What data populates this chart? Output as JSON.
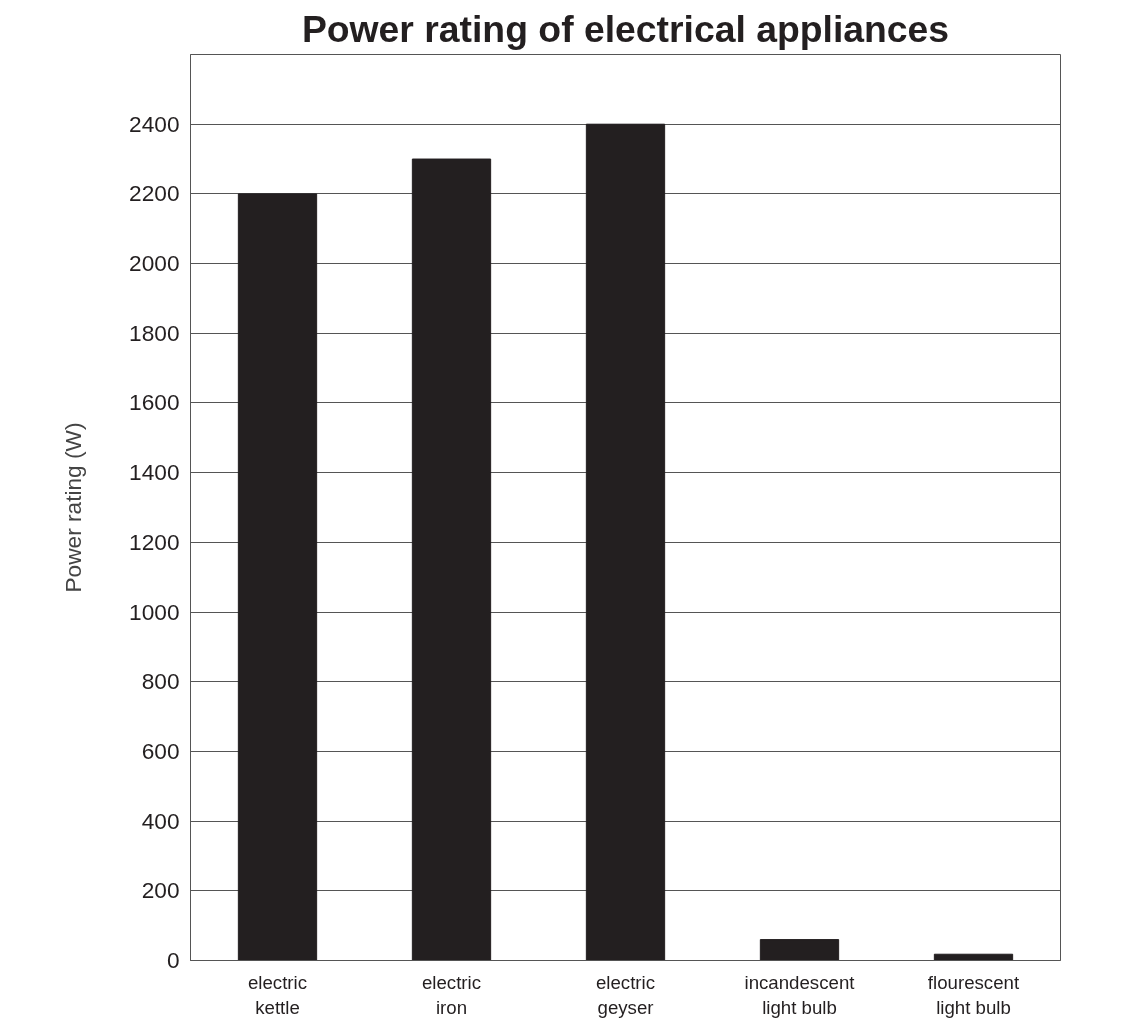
{
  "chart_data": {
    "type": "bar",
    "title": "Power rating of electrical appliances",
    "ylabel": "Power rating (W)",
    "categories": [
      "electric\nkettle",
      "electric\niron",
      "electric\ngeyser",
      "incandescent\nlight bulb",
      "flourescent\nlight bulb"
    ],
    "values": [
      2200,
      2300,
      2400,
      60,
      18
    ],
    "color": "#231f20",
    "ylim": [
      0,
      2600
    ],
    "yticks": [
      0,
      200,
      400,
      600,
      800,
      1000,
      1200,
      1400,
      1600,
      1800,
      2000,
      2200,
      2400,
      {
        "value": 2600,
        "label": null
      }
    ],
    "grid": "y"
  }
}
